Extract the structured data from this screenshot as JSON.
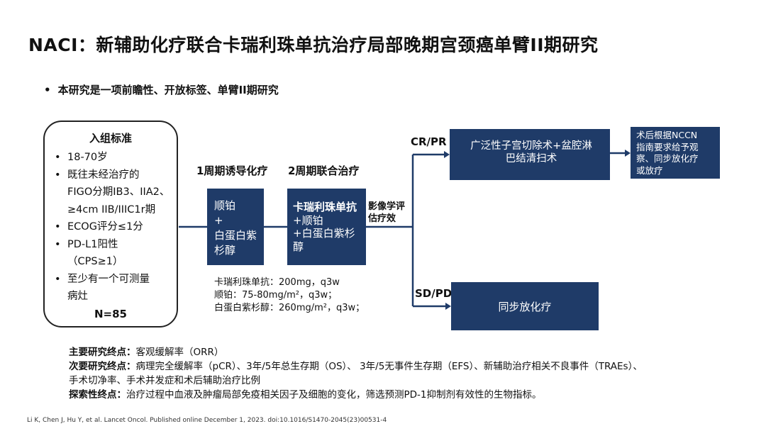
{
  "title": "NACI：新辅助化疗联合卡瑞利珠单抗治疗局部晚期宫颈癌单臂II期研究",
  "bullet": "本研究是一项前瞻性、开放标签、单臂II期研究",
  "criteria": {
    "title": "入组标准",
    "items": [
      "18-70岁",
      "既往未经治疗的",
      "FIGO分期IB3、IIA2、",
      "≥4cm IIB/IIIC1r期",
      "ECOG评分≤1分",
      "PD-L1阳性",
      "（CPS≥1）",
      "至少有一个可测量",
      "病灶"
    ],
    "n": "N=85"
  },
  "phases": {
    "induction_label": "1周期诱导化疗",
    "combined_label": "2周期联合治疗"
  },
  "box1": {
    "line1": "顺铂",
    "line2": "+",
    "line3": "白蛋白紫",
    "line4": "杉醇"
  },
  "box2": {
    "line1": "卡瑞利珠单抗",
    "line2": "+顺铂",
    "line3": "+白蛋白紫杉",
    "line4": "醇"
  },
  "eval": {
    "line1": "影像学评",
    "line2": "估疗效"
  },
  "branches": {
    "upper": "CR/PR",
    "lower": "SD/PD"
  },
  "box3": {
    "line1": "广泛性子宫切除术+盆腔淋",
    "line2": "巴结清扫术"
  },
  "box4": {
    "line1": "术后根据NCCN",
    "line2": "指南要求给予观",
    "line3": "察、同步放化疗",
    "line4": "或放疗"
  },
  "box5": "同步放化疗",
  "dosage": {
    "line1": "卡瑞利珠单抗：200mg，q3w",
    "line2": "顺铂：75-80mg/m²，q3w；",
    "line3": "白蛋白紫杉醇：260mg/m²，q3w；"
  },
  "endpoints": {
    "primary_label": "主要研究终点：",
    "primary_text": "客观缓解率（ORR）",
    "secondary_label": "次要研究终点：",
    "secondary_text": "病理完全缓解率（pCR）、3年/5年总生存期（OS）、 3年/5无事件生存期（EFS）、新辅助治疗相关不良事件（TRAEs）、",
    "secondary_text2": "手术切净率、手术并发症和术后辅助治疗比例",
    "exploratory_label": "探索性终点：",
    "exploratory_text": "治疗过程中血液及肿瘤局部免疫相关因子及细胞的变化，筛选预测PD-1抑制剂有效性的生物指标。"
  },
  "citation": "Li K, Chen J, Hu Y, et al. Lancet Oncol. Published online December 1, 2023. doi:10.1016/S1470-2045(23)00531-4",
  "colors": {
    "box_fill": "#1f3b68",
    "line": "#1f3b68"
  }
}
